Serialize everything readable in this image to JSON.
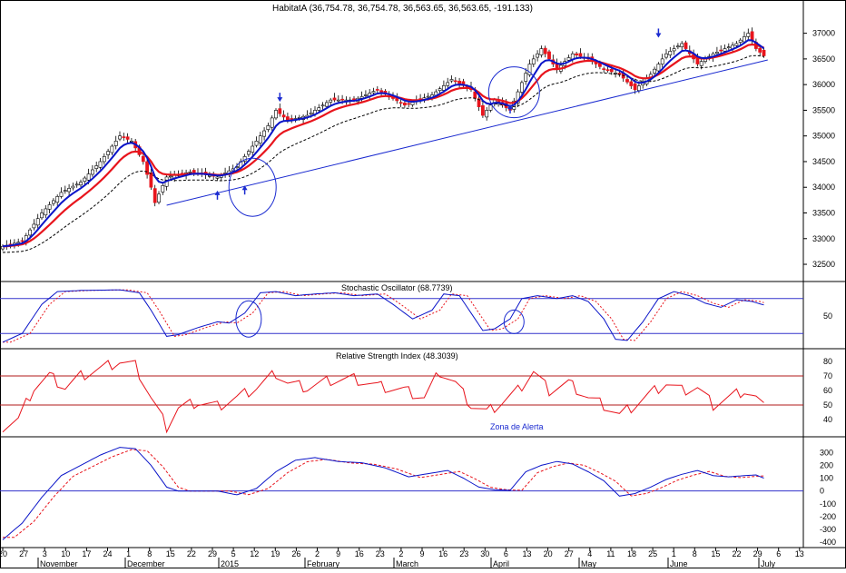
{
  "header": {
    "title": "HabitatA (36,754.78, 36,754.78, 36,563.65, 36,563.65, -191.133)"
  },
  "colors": {
    "up_candle": "#ffffff",
    "down_candle": "#e8141c",
    "ma_fast": "#0a14c8",
    "ma_slow": "#e8141c",
    "ma_long": "#000000",
    "annotation": "#1a2ad0",
    "grid": "#3333cc"
  },
  "chart_data": [
    {
      "type": "candlestick",
      "title": "HabitatA (36,754.78, 36,754.78, 36,563.65, 36,563.65, -191.133)",
      "ylim": [
        32200,
        37400
      ],
      "y_ticks": [
        32500,
        33000,
        33500,
        34000,
        34500,
        35000,
        35500,
        36000,
        36500,
        37000
      ],
      "x_tick_labels": [
        "20",
        "27",
        "3",
        "10",
        "17",
        "24",
        "1",
        "8",
        "15",
        "22",
        "29",
        "5",
        "12",
        "19",
        "26",
        "2",
        "9",
        "16",
        "23",
        "2",
        "9",
        "16",
        "23",
        "30",
        "6",
        "13",
        "20",
        "27",
        "4",
        "11",
        "18",
        "25",
        "1",
        "8",
        "15",
        "22",
        "29",
        "6",
        "13"
      ],
      "x_month_labels": [
        "November",
        "December",
        "2015",
        "February",
        "March",
        "April",
        "May",
        "June",
        "July"
      ],
      "close_anchors": [
        [
          0,
          32850
        ],
        [
          5,
          32950
        ],
        [
          10,
          33500
        ],
        [
          15,
          33900
        ],
        [
          20,
          34100
        ],
        [
          25,
          34500
        ],
        [
          30,
          35000
        ],
        [
          33,
          34900
        ],
        [
          36,
          34500
        ],
        [
          38,
          34000
        ],
        [
          39,
          33700
        ],
        [
          42,
          34200
        ],
        [
          48,
          34300
        ],
        [
          55,
          34200
        ],
        [
          60,
          34400
        ],
        [
          64,
          34800
        ],
        [
          68,
          35200
        ],
        [
          70,
          35500
        ],
        [
          73,
          35300
        ],
        [
          78,
          35400
        ],
        [
          84,
          35700
        ],
        [
          90,
          35700
        ],
        [
          96,
          35900
        ],
        [
          103,
          35600
        ],
        [
          110,
          35800
        ],
        [
          115,
          36100
        ],
        [
          120,
          35900
        ],
        [
          123,
          35400
        ],
        [
          126,
          35700
        ],
        [
          130,
          35500
        ],
        [
          135,
          36400
        ],
        [
          138,
          36700
        ],
        [
          142,
          36300
        ],
        [
          146,
          36600
        ],
        [
          150,
          36500
        ],
        [
          154,
          36300
        ],
        [
          158,
          36200
        ],
        [
          162,
          35900
        ],
        [
          166,
          36200
        ],
        [
          170,
          36600
        ],
        [
          174,
          36800
        ],
        [
          178,
          36400
        ],
        [
          182,
          36600
        ],
        [
          188,
          36800
        ],
        [
          191,
          37000
        ],
        [
          193,
          36700
        ],
        [
          195,
          36560
        ]
      ],
      "moving_averages": [
        "fast",
        "slow",
        "long"
      ],
      "annotations": [
        "up-arrow",
        "up-arrow",
        "up-arrow",
        "down-arrow",
        "down-arrow",
        "trendline",
        "circle",
        "circle"
      ]
    },
    {
      "type": "line",
      "title": "Stochastic Oscillator (68.7739)",
      "ylim": [
        0,
        100
      ],
      "y_ticks": [
        50
      ],
      "bands": [
        20,
        80
      ],
      "anchors": [
        [
          0,
          5
        ],
        [
          5,
          20
        ],
        [
          10,
          70
        ],
        [
          14,
          92
        ],
        [
          20,
          94
        ],
        [
          30,
          95
        ],
        [
          35,
          90
        ],
        [
          38,
          60
        ],
        [
          42,
          15
        ],
        [
          45,
          18
        ],
        [
          50,
          30
        ],
        [
          55,
          40
        ],
        [
          58,
          38
        ],
        [
          62,
          55
        ],
        [
          66,
          90
        ],
        [
          70,
          92
        ],
        [
          75,
          85
        ],
        [
          80,
          88
        ],
        [
          85,
          90
        ],
        [
          90,
          85
        ],
        [
          96,
          88
        ],
        [
          100,
          70
        ],
        [
          105,
          45
        ],
        [
          110,
          60
        ],
        [
          113,
          88
        ],
        [
          117,
          85
        ],
        [
          120,
          55
        ],
        [
          123,
          25
        ],
        [
          126,
          28
        ],
        [
          130,
          45
        ],
        [
          133,
          80
        ],
        [
          137,
          85
        ],
        [
          142,
          80
        ],
        [
          146,
          85
        ],
        [
          150,
          75
        ],
        [
          154,
          45
        ],
        [
          157,
          10
        ],
        [
          160,
          8
        ],
        [
          164,
          40
        ],
        [
          168,
          80
        ],
        [
          172,
          92
        ],
        [
          176,
          85
        ],
        [
          180,
          72
        ],
        [
          184,
          65
        ],
        [
          188,
          78
        ],
        [
          192,
          75
        ],
        [
          195,
          69
        ]
      ],
      "signal_lag": 2
    },
    {
      "type": "line",
      "title": "Relative Strength Index (48.3039)",
      "ylim": [
        30,
        85
      ],
      "y_ticks": [
        40,
        50,
        60,
        70,
        80
      ],
      "bands": [
        50,
        70
      ],
      "annotation": "Zona de Alerta",
      "anchors": [
        [
          0,
          35
        ],
        [
          4,
          40
        ],
        [
          8,
          62
        ],
        [
          12,
          70
        ],
        [
          16,
          62
        ],
        [
          20,
          70
        ],
        [
          25,
          75
        ],
        [
          30,
          80
        ],
        [
          34,
          77
        ],
        [
          38,
          55
        ],
        [
          42,
          35
        ],
        [
          45,
          48
        ],
        [
          50,
          52
        ],
        [
          55,
          49
        ],
        [
          60,
          55
        ],
        [
          65,
          62
        ],
        [
          70,
          72
        ],
        [
          73,
          65
        ],
        [
          78,
          62
        ],
        [
          84,
          67
        ],
        [
          90,
          68
        ],
        [
          96,
          63
        ],
        [
          103,
          60
        ],
        [
          108,
          55
        ],
        [
          112,
          73
        ],
        [
          116,
          65
        ],
        [
          120,
          50
        ],
        [
          124,
          45
        ],
        [
          128,
          52
        ],
        [
          132,
          60
        ],
        [
          136,
          73
        ],
        [
          140,
          60
        ],
        [
          145,
          65
        ],
        [
          150,
          55
        ],
        [
          154,
          50
        ],
        [
          158,
          43
        ],
        [
          162,
          50
        ],
        [
          166,
          58
        ],
        [
          170,
          65
        ],
        [
          174,
          60
        ],
        [
          178,
          62
        ],
        [
          182,
          50
        ],
        [
          186,
          55
        ],
        [
          190,
          60
        ],
        [
          193,
          55
        ],
        [
          195,
          48
        ]
      ]
    },
    {
      "type": "line",
      "ylim": [
        -420,
        380
      ],
      "y_ticks": [
        -400,
        -300,
        -200,
        -100,
        0,
        100,
        200,
        300
      ],
      "baseline": 0,
      "anchors": [
        [
          0,
          -380
        ],
        [
          5,
          -250
        ],
        [
          10,
          -50
        ],
        [
          15,
          120
        ],
        [
          20,
          200
        ],
        [
          25,
          280
        ],
        [
          30,
          340
        ],
        [
          34,
          330
        ],
        [
          38,
          200
        ],
        [
          42,
          30
        ],
        [
          45,
          0
        ],
        [
          50,
          0
        ],
        [
          55,
          0
        ],
        [
          60,
          -30
        ],
        [
          65,
          20
        ],
        [
          70,
          150
        ],
        [
          75,
          240
        ],
        [
          80,
          260
        ],
        [
          86,
          230
        ],
        [
          92,
          220
        ],
        [
          98,
          180
        ],
        [
          104,
          110
        ],
        [
          110,
          140
        ],
        [
          114,
          160
        ],
        [
          118,
          100
        ],
        [
          122,
          30
        ],
        [
          126,
          10
        ],
        [
          130,
          5
        ],
        [
          134,
          150
        ],
        [
          138,
          200
        ],
        [
          142,
          230
        ],
        [
          146,
          210
        ],
        [
          150,
          150
        ],
        [
          154,
          80
        ],
        [
          158,
          -40
        ],
        [
          162,
          -20
        ],
        [
          166,
          30
        ],
        [
          170,
          90
        ],
        [
          174,
          130
        ],
        [
          178,
          160
        ],
        [
          182,
          120
        ],
        [
          186,
          110
        ],
        [
          190,
          120
        ],
        [
          193,
          125
        ],
        [
          195,
          100
        ]
      ],
      "signal_lag": 3
    }
  ]
}
